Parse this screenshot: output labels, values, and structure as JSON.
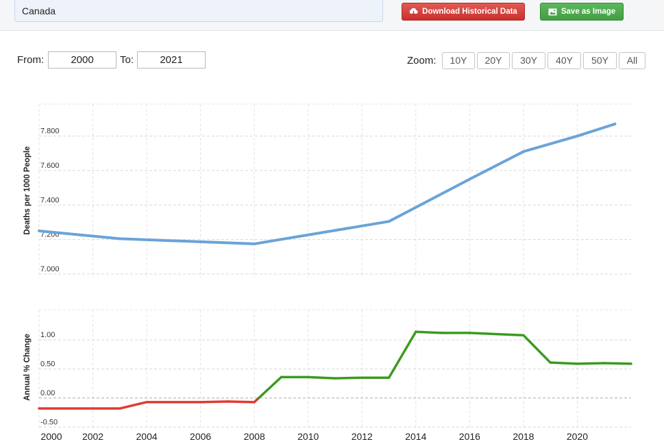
{
  "country_select": {
    "value": "Canada"
  },
  "buttons": {
    "download": "Download Historical Data",
    "save_image": "Save as Image"
  },
  "range": {
    "from_label": "From:",
    "from_value": "2000",
    "to_label": "To:",
    "to_value": "2021"
  },
  "zoom": {
    "label": "Zoom:",
    "options": [
      "10Y",
      "20Y",
      "30Y",
      "40Y",
      "50Y",
      "All"
    ]
  },
  "colors": {
    "main_line": "#6aa3d8",
    "positive": "#3b9a1e",
    "negative": "#e03a31",
    "download_button": "#c9302c",
    "save_button": "#449d44"
  },
  "chart_data": [
    {
      "type": "line",
      "ylabel": "Deaths per 1000 People",
      "x": [
        2000,
        2003,
        2008,
        2013,
        2016,
        2018,
        2020,
        2021.4
      ],
      "y": [
        7.25,
        7.205,
        7.175,
        7.305,
        7.55,
        7.71,
        7.8,
        7.87
      ],
      "yticks": [
        "7.000",
        "7.200",
        "7.400",
        "7.600",
        "7.800"
      ],
      "ylim": [
        6.98,
        7.985
      ],
      "xlim": [
        2000,
        2022
      ],
      "grid": true
    },
    {
      "type": "line",
      "ylabel": "Annual % Change",
      "x": [
        2000,
        2003,
        2004,
        2006,
        2007,
        2008,
        2009,
        2010,
        2011,
        2012,
        2013,
        2014,
        2015,
        2016,
        2017,
        2018,
        2019,
        2020,
        2021,
        2022
      ],
      "y": [
        -0.18,
        -0.18,
        -0.07,
        -0.07,
        -0.06,
        -0.07,
        0.36,
        0.36,
        0.34,
        0.35,
        0.35,
        1.14,
        1.12,
        1.12,
        1.1,
        1.08,
        0.61,
        0.59,
        0.6,
        0.59
      ],
      "yticks": [
        "-0.50",
        "0.00",
        "0.50",
        "1.00"
      ],
      "ylim": [
        -0.52,
        1.52
      ],
      "xlim": [
        2000,
        2022
      ],
      "xticks": [
        "2000",
        "2002",
        "2004",
        "2006",
        "2008",
        "2010",
        "2012",
        "2014",
        "2016",
        "2018",
        "2020"
      ],
      "grid": true
    }
  ]
}
